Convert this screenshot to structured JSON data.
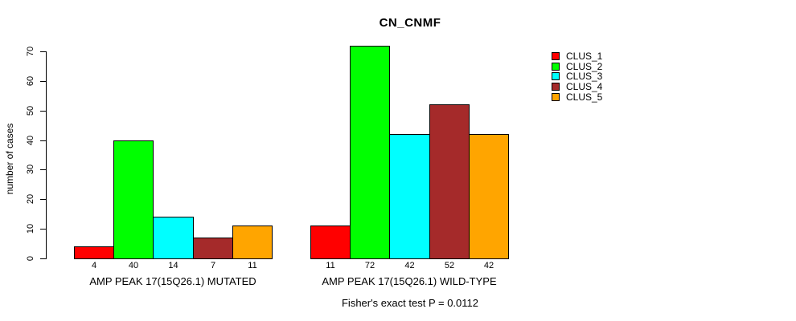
{
  "chart_data": {
    "type": "bar",
    "title": "CN_CNMF",
    "xlabel": "",
    "ylabel": "number of cases",
    "ylim": [
      0,
      70
    ],
    "yticks": [
      0,
      10,
      20,
      30,
      40,
      50,
      60,
      70
    ],
    "grid": false,
    "legend_position": "right",
    "categories": [
      "AMP PEAK 17(15Q26.1) MUTATED",
      "AMP PEAK 17(15Q26.1) WILD-TYPE"
    ],
    "series": [
      {
        "name": "CLUS_1",
        "color": "#FF0000",
        "values": [
          4,
          11
        ]
      },
      {
        "name": "CLUS_2",
        "color": "#00FF00",
        "values": [
          40,
          72
        ]
      },
      {
        "name": "CLUS_3",
        "color": "#00FFFF",
        "values": [
          14,
          42
        ]
      },
      {
        "name": "CLUS_4",
        "color": "#A52A2A",
        "values": [
          7,
          52
        ]
      },
      {
        "name": "CLUS_5",
        "color": "#FFA500",
        "values": [
          11,
          42
        ]
      }
    ],
    "bar_value_labels": [
      [
        4,
        40,
        14,
        7,
        11
      ],
      [
        11,
        72,
        42,
        52,
        42
      ]
    ],
    "annotation": "Fisher's exact test P = 0.0112"
  }
}
